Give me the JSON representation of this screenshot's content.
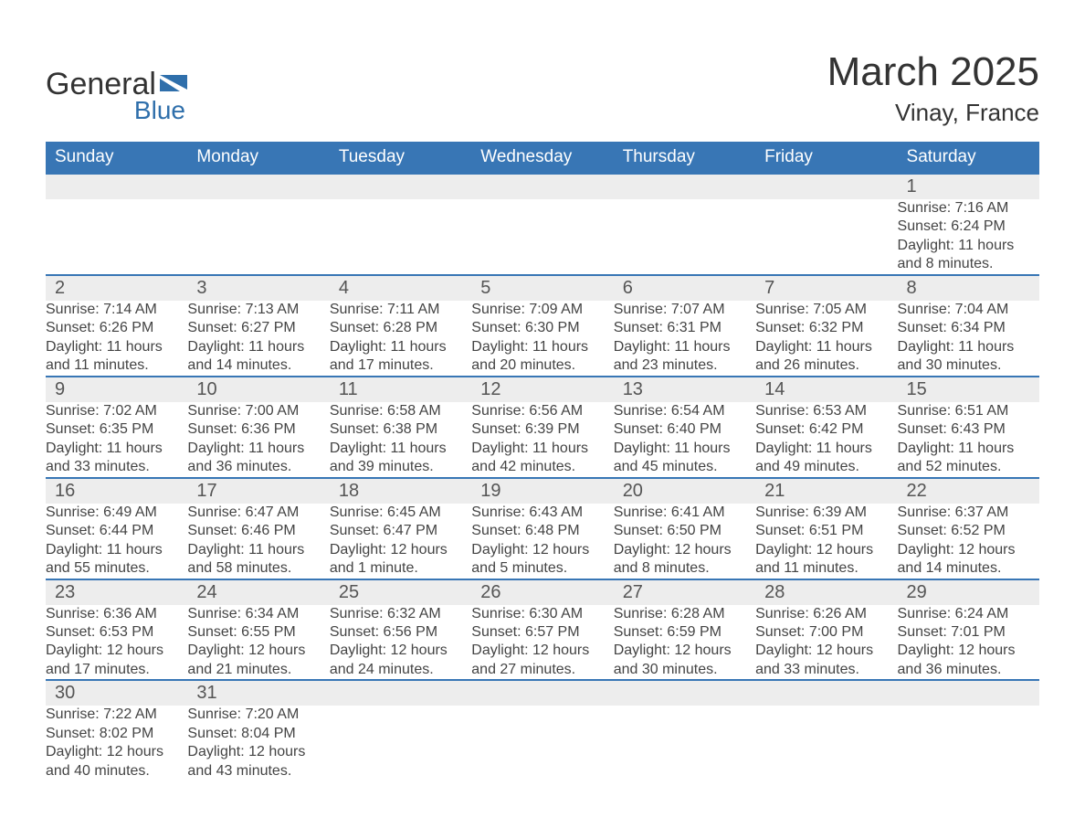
{
  "brand": {
    "word1": "General",
    "word2": "Blue"
  },
  "title": {
    "month": "March 2025",
    "location": "Vinay, France"
  },
  "styling": {
    "header_bg": "#3876b5",
    "header_text": "#ffffff",
    "daynum_bg": "#ededed",
    "row_divider": "#3876b5",
    "body_text": "#424242",
    "title_fontsize_pt": 33,
    "location_fontsize_pt": 20,
    "header_fontsize_pt": 14,
    "daynum_fontsize_pt": 15,
    "cell_fontsize_pt": 12
  },
  "weekdays": [
    "Sunday",
    "Monday",
    "Tuesday",
    "Wednesday",
    "Thursday",
    "Friday",
    "Saturday"
  ],
  "calendar": {
    "type": "table",
    "columns": 7,
    "weeks": [
      [
        null,
        null,
        null,
        null,
        null,
        null,
        {
          "n": "1",
          "sunrise": "Sunrise: 7:16 AM",
          "sunset": "Sunset: 6:24 PM",
          "dl1": "Daylight: 11 hours",
          "dl2": "and 8 minutes."
        }
      ],
      [
        {
          "n": "2",
          "sunrise": "Sunrise: 7:14 AM",
          "sunset": "Sunset: 6:26 PM",
          "dl1": "Daylight: 11 hours",
          "dl2": "and 11 minutes."
        },
        {
          "n": "3",
          "sunrise": "Sunrise: 7:13 AM",
          "sunset": "Sunset: 6:27 PM",
          "dl1": "Daylight: 11 hours",
          "dl2": "and 14 minutes."
        },
        {
          "n": "4",
          "sunrise": "Sunrise: 7:11 AM",
          "sunset": "Sunset: 6:28 PM",
          "dl1": "Daylight: 11 hours",
          "dl2": "and 17 minutes."
        },
        {
          "n": "5",
          "sunrise": "Sunrise: 7:09 AM",
          "sunset": "Sunset: 6:30 PM",
          "dl1": "Daylight: 11 hours",
          "dl2": "and 20 minutes."
        },
        {
          "n": "6",
          "sunrise": "Sunrise: 7:07 AM",
          "sunset": "Sunset: 6:31 PM",
          "dl1": "Daylight: 11 hours",
          "dl2": "and 23 minutes."
        },
        {
          "n": "7",
          "sunrise": "Sunrise: 7:05 AM",
          "sunset": "Sunset: 6:32 PM",
          "dl1": "Daylight: 11 hours",
          "dl2": "and 26 minutes."
        },
        {
          "n": "8",
          "sunrise": "Sunrise: 7:04 AM",
          "sunset": "Sunset: 6:34 PM",
          "dl1": "Daylight: 11 hours",
          "dl2": "and 30 minutes."
        }
      ],
      [
        {
          "n": "9",
          "sunrise": "Sunrise: 7:02 AM",
          "sunset": "Sunset: 6:35 PM",
          "dl1": "Daylight: 11 hours",
          "dl2": "and 33 minutes."
        },
        {
          "n": "10",
          "sunrise": "Sunrise: 7:00 AM",
          "sunset": "Sunset: 6:36 PM",
          "dl1": "Daylight: 11 hours",
          "dl2": "and 36 minutes."
        },
        {
          "n": "11",
          "sunrise": "Sunrise: 6:58 AM",
          "sunset": "Sunset: 6:38 PM",
          "dl1": "Daylight: 11 hours",
          "dl2": "and 39 minutes."
        },
        {
          "n": "12",
          "sunrise": "Sunrise: 6:56 AM",
          "sunset": "Sunset: 6:39 PM",
          "dl1": "Daylight: 11 hours",
          "dl2": "and 42 minutes."
        },
        {
          "n": "13",
          "sunrise": "Sunrise: 6:54 AM",
          "sunset": "Sunset: 6:40 PM",
          "dl1": "Daylight: 11 hours",
          "dl2": "and 45 minutes."
        },
        {
          "n": "14",
          "sunrise": "Sunrise: 6:53 AM",
          "sunset": "Sunset: 6:42 PM",
          "dl1": "Daylight: 11 hours",
          "dl2": "and 49 minutes."
        },
        {
          "n": "15",
          "sunrise": "Sunrise: 6:51 AM",
          "sunset": "Sunset: 6:43 PM",
          "dl1": "Daylight: 11 hours",
          "dl2": "and 52 minutes."
        }
      ],
      [
        {
          "n": "16",
          "sunrise": "Sunrise: 6:49 AM",
          "sunset": "Sunset: 6:44 PM",
          "dl1": "Daylight: 11 hours",
          "dl2": "and 55 minutes."
        },
        {
          "n": "17",
          "sunrise": "Sunrise: 6:47 AM",
          "sunset": "Sunset: 6:46 PM",
          "dl1": "Daylight: 11 hours",
          "dl2": "and 58 minutes."
        },
        {
          "n": "18",
          "sunrise": "Sunrise: 6:45 AM",
          "sunset": "Sunset: 6:47 PM",
          "dl1": "Daylight: 12 hours",
          "dl2": "and 1 minute."
        },
        {
          "n": "19",
          "sunrise": "Sunrise: 6:43 AM",
          "sunset": "Sunset: 6:48 PM",
          "dl1": "Daylight: 12 hours",
          "dl2": "and 5 minutes."
        },
        {
          "n": "20",
          "sunrise": "Sunrise: 6:41 AM",
          "sunset": "Sunset: 6:50 PM",
          "dl1": "Daylight: 12 hours",
          "dl2": "and 8 minutes."
        },
        {
          "n": "21",
          "sunrise": "Sunrise: 6:39 AM",
          "sunset": "Sunset: 6:51 PM",
          "dl1": "Daylight: 12 hours",
          "dl2": "and 11 minutes."
        },
        {
          "n": "22",
          "sunrise": "Sunrise: 6:37 AM",
          "sunset": "Sunset: 6:52 PM",
          "dl1": "Daylight: 12 hours",
          "dl2": "and 14 minutes."
        }
      ],
      [
        {
          "n": "23",
          "sunrise": "Sunrise: 6:36 AM",
          "sunset": "Sunset: 6:53 PM",
          "dl1": "Daylight: 12 hours",
          "dl2": "and 17 minutes."
        },
        {
          "n": "24",
          "sunrise": "Sunrise: 6:34 AM",
          "sunset": "Sunset: 6:55 PM",
          "dl1": "Daylight: 12 hours",
          "dl2": "and 21 minutes."
        },
        {
          "n": "25",
          "sunrise": "Sunrise: 6:32 AM",
          "sunset": "Sunset: 6:56 PM",
          "dl1": "Daylight: 12 hours",
          "dl2": "and 24 minutes."
        },
        {
          "n": "26",
          "sunrise": "Sunrise: 6:30 AM",
          "sunset": "Sunset: 6:57 PM",
          "dl1": "Daylight: 12 hours",
          "dl2": "and 27 minutes."
        },
        {
          "n": "27",
          "sunrise": "Sunrise: 6:28 AM",
          "sunset": "Sunset: 6:59 PM",
          "dl1": "Daylight: 12 hours",
          "dl2": "and 30 minutes."
        },
        {
          "n": "28",
          "sunrise": "Sunrise: 6:26 AM",
          "sunset": "Sunset: 7:00 PM",
          "dl1": "Daylight: 12 hours",
          "dl2": "and 33 minutes."
        },
        {
          "n": "29",
          "sunrise": "Sunrise: 6:24 AM",
          "sunset": "Sunset: 7:01 PM",
          "dl1": "Daylight: 12 hours",
          "dl2": "and 36 minutes."
        }
      ],
      [
        {
          "n": "30",
          "sunrise": "Sunrise: 7:22 AM",
          "sunset": "Sunset: 8:02 PM",
          "dl1": "Daylight: 12 hours",
          "dl2": "and 40 minutes."
        },
        {
          "n": "31",
          "sunrise": "Sunrise: 7:20 AM",
          "sunset": "Sunset: 8:04 PM",
          "dl1": "Daylight: 12 hours",
          "dl2": "and 43 minutes."
        },
        null,
        null,
        null,
        null,
        null
      ]
    ]
  }
}
